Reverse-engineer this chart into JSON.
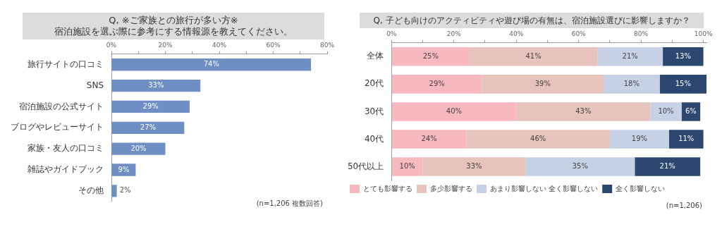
{
  "chart_data": [
    {
      "type": "bar",
      "orientation": "horizontal",
      "title": "Q, ※ご家族との旅行が多い方※\n宿泊施設を選ぶ際に参考にする情報源を教えてください。",
      "categories": [
        "旅行サイトの口コミ",
        "SNS",
        "宿泊施設の公式サイト",
        "ブログやレビューサイト",
        "家族・友人の口コミ",
        "雑誌やガイドブック",
        "その他"
      ],
      "series": [
        {
          "color": "#6f8fc4",
          "values": [
            74,
            33,
            29,
            27,
            20,
            9,
            2
          ],
          "value_labels": [
            "74%",
            "33%",
            "29%",
            "27%",
            "20%",
            "9%",
            "2%"
          ]
        }
      ],
      "xlim": [
        0,
        80
      ],
      "xticks": [
        {
          "value": 0,
          "label": "0%"
        },
        {
          "value": 10,
          "label": null
        },
        {
          "value": 20,
          "label": "20%"
        },
        {
          "value": 30,
          "label": null
        },
        {
          "value": 40,
          "label": "40%"
        },
        {
          "value": 50,
          "label": null
        },
        {
          "value": 60,
          "label": "60%"
        },
        {
          "value": 70,
          "label": null
        },
        {
          "value": 80,
          "label": "80%"
        }
      ],
      "grid": false,
      "legend": false,
      "annotations": [
        "(n=1,206 複数回答)"
      ]
    },
    {
      "type": "bar",
      "orientation": "horizontal",
      "stacked": true,
      "title": "Q, 子ども向けのアクティビティや遊び場の有無は、宿泊施設選びに影響しますか？",
      "categories": [
        "全体",
        "20代",
        "30代",
        "40代",
        "50代以上"
      ],
      "series": [
        {
          "name": "とても影響する",
          "color": "#f8b8c0",
          "values": [
            25,
            29,
            40,
            24,
            10
          ],
          "value_labels": [
            "25%",
            "29%",
            "40%",
            "24%",
            "10%"
          ]
        },
        {
          "name": "多少影響する",
          "color": "#e6c4bb",
          "values": [
            41,
            39,
            43,
            46,
            33
          ],
          "value_labels": [
            "41%",
            "39%",
            "43%",
            "46%",
            "33%"
          ]
        },
        {
          "name": "あまり影響しない 全く影響しない",
          "color": "#c6d1e6",
          "values": [
            21,
            18,
            10,
            19,
            35
          ],
          "value_labels": [
            "21%",
            "18%",
            "10%",
            "19%",
            "35%"
          ]
        },
        {
          "name": "全く影響しない",
          "color": "#2c4770",
          "values": [
            13,
            15,
            6,
            11,
            21
          ],
          "value_labels": [
            "13%",
            "15%",
            "6%",
            "11%",
            "21%"
          ]
        }
      ],
      "xlim": [
        0,
        101
      ],
      "xticks": [
        {
          "value": 0,
          "label": "0%"
        },
        {
          "value": 10,
          "label": null
        },
        {
          "value": 20,
          "label": "20%"
        },
        {
          "value": 30,
          "label": null
        },
        {
          "value": 40,
          "label": "40%"
        },
        {
          "value": 50,
          "label": null
        },
        {
          "value": 60,
          "label": "60%"
        },
        {
          "value": 70,
          "label": null
        },
        {
          "value": 80,
          "label": "80%"
        },
        {
          "value": 90,
          "label": null
        },
        {
          "value": 100,
          "label": "100%"
        }
      ],
      "grid": false,
      "legend": "bottom left",
      "annotations": [
        "(n=1,206)"
      ]
    }
  ]
}
